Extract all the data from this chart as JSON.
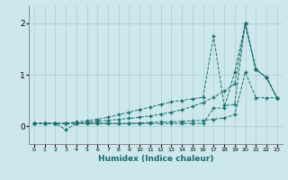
{
  "xlabel": "Humidex (Indice chaleur)",
  "background_color": "#cce8ec",
  "grid_color": "#aacccc",
  "line_color": "#1a6b6b",
  "xlim": [
    -0.5,
    23.5
  ],
  "ylim": [
    -0.35,
    2.35
  ],
  "yticks": [
    0,
    1,
    2
  ],
  "xticks": [
    0,
    1,
    2,
    3,
    4,
    5,
    6,
    7,
    8,
    9,
    10,
    11,
    12,
    13,
    14,
    15,
    16,
    17,
    18,
    19,
    20,
    21,
    22,
    23
  ],
  "series": [
    [
      0.05,
      0.05,
      0.05,
      0.05,
      0.05,
      0.05,
      0.05,
      0.05,
      0.05,
      0.05,
      0.06,
      0.07,
      0.08,
      0.08,
      0.09,
      0.1,
      0.11,
      0.13,
      0.16,
      0.22,
      1.05,
      0.55,
      0.55,
      0.55
    ],
    [
      0.05,
      0.05,
      0.05,
      0.05,
      0.06,
      0.07,
      0.09,
      0.11,
      0.13,
      0.15,
      0.17,
      0.2,
      0.23,
      0.27,
      0.32,
      0.38,
      0.46,
      0.56,
      0.68,
      0.82,
      2.0,
      1.1,
      0.95,
      0.55
    ],
    [
      0.05,
      0.05,
      0.05,
      0.05,
      0.08,
      0.1,
      0.13,
      0.17,
      0.22,
      0.27,
      0.32,
      0.37,
      0.42,
      0.47,
      0.5,
      0.53,
      0.56,
      1.75,
      0.4,
      0.42,
      2.0,
      1.1,
      0.95,
      0.55
    ],
    [
      0.05,
      0.05,
      0.05,
      -0.07,
      0.05,
      0.05,
      0.05,
      0.05,
      0.05,
      0.05,
      0.05,
      0.05,
      0.05,
      0.05,
      0.05,
      0.05,
      0.05,
      0.35,
      0.35,
      1.05,
      2.0,
      1.1,
      0.95,
      0.55
    ]
  ]
}
